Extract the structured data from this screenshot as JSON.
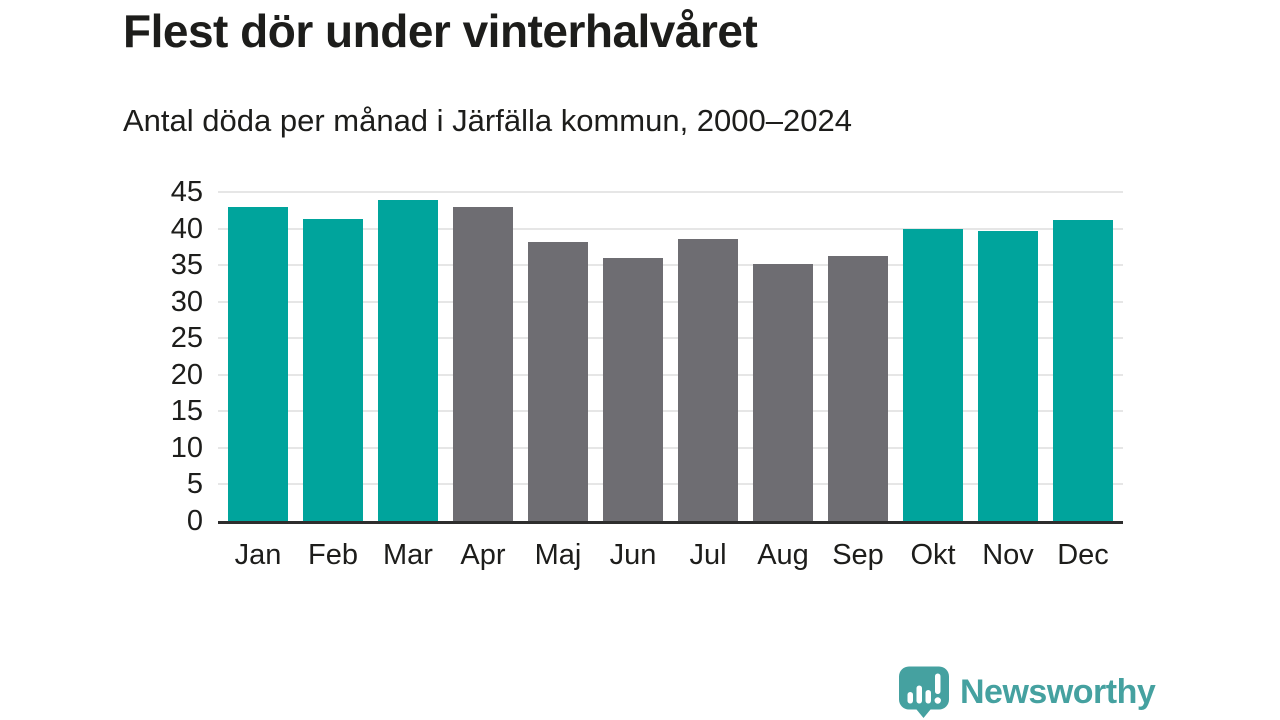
{
  "header": {
    "title": "Flest dör under vinterhalvåret",
    "subtitle": "Antal döda per månad i Järfälla kommun, 2000–2024"
  },
  "chart_data": {
    "type": "bar",
    "title": "Flest dör under vinterhalvåret",
    "subtitle": "Antal döda per månad i Järfälla kommun, 2000–2024",
    "categories": [
      "Jan",
      "Feb",
      "Mar",
      "Apr",
      "Maj",
      "Jun",
      "Jul",
      "Aug",
      "Sep",
      "Okt",
      "Nov",
      "Dec"
    ],
    "values": [
      43.0,
      41.3,
      43.9,
      42.9,
      38.2,
      36.0,
      38.6,
      35.2,
      36.2,
      40.0,
      39.6,
      41.2
    ],
    "bar_color_keys": [
      "teal",
      "teal",
      "teal",
      "gray",
      "gray",
      "gray",
      "gray",
      "gray",
      "gray",
      "teal",
      "teal",
      "teal"
    ],
    "colors": {
      "teal": "#00a49c",
      "gray": "#6e6d72"
    },
    "xlabel": "",
    "ylabel": "",
    "ylim": [
      0,
      45
    ],
    "yticks": [
      0,
      5,
      10,
      15,
      20,
      25,
      30,
      35,
      40,
      45
    ],
    "grid": "horizontal",
    "legend": "none"
  },
  "footer": {
    "brand": "Newsworthy",
    "brand_color": "#45a1a0"
  }
}
